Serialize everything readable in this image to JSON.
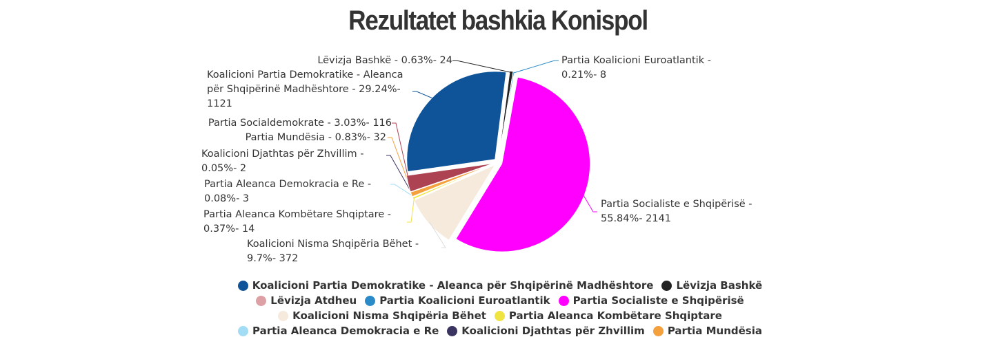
{
  "chart_data": {
    "type": "pie",
    "title": "Rezultatet bashkia Konispol",
    "categories": [
      "Koalicioni Partia Demokratike - Aleanca për Shqipërinë Madhështore",
      "Lëvizja Bashkë",
      "Lëvizja Atdheu",
      "Partia Koalicioni Euroatlantik",
      "Partia Socialiste e Shqipërisë",
      "Koalicioni Nisma Shqipëria Bëhet",
      "Partia Aleanca Kombëtare Shqiptare",
      "Partia Aleanca Demokracia e Re",
      "Koalicioni Djathtas për Zhvillim",
      "Partia Mundësia",
      "Partia Socialdemokrate"
    ],
    "values": [
      1121,
      24,
      0,
      8,
      2141,
      372,
      14,
      3,
      2,
      32,
      116
    ],
    "value_labels": [
      "Koalicioni Partia Demokratike - Aleanca për Shqipërinë Madhështore - 29.24%- 1121",
      "Lëvizja Bashkë - 0.63%- 24",
      null,
      "Partia Koalicioni Euroatlantik - 0.21%- 8",
      "Partia Socialiste e Shqipërisë - 55.84%- 2141",
      "Koalicioni Nisma Shqipëria Bëhet - 9.7%- 372",
      "Partia Aleanca Kombëtare Shqiptare - 0.37%- 14",
      "Partia Aleanca Demokracia e Re - 0.08%- 3",
      "Koalicioni Djathtas për Zhvillim - 0.05%- 2",
      "Partia Mundësia - 0.83%- 32",
      "Partia Socialdemokrate - 3.03%- 116"
    ],
    "colors": [
      "#0f5499",
      "#222222",
      "#dca0a5",
      "#2a8bc8",
      "#ff00ff",
      "#f5eadb",
      "#f0e442",
      "#a3dcf5",
      "#3a3461",
      "#f4a03c",
      "#ad4252"
    ],
    "legend": true
  }
}
